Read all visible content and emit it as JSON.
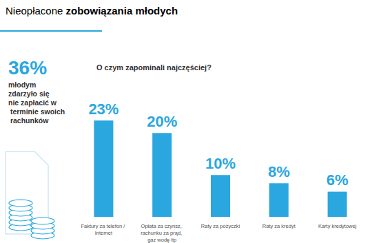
{
  "chart_data": {
    "type": "bar",
    "title": "Nieopłacone zobowiązania młodych",
    "subtitle": "O czym zapominali najczęściej?",
    "annotations": [
      "36%",
      "młodym zdarzyło się nie zapłacić w terminie swoich rachunków"
    ],
    "categories": [
      "Faktury za telefon / Internet",
      "Opłata za czynsz, rachunku za prąd, gaz wodę itp",
      "Raty za pożyczki",
      "Raty za kredyt",
      "Karty kredytowej"
    ],
    "values": [
      23,
      20,
      10,
      8,
      6
    ],
    "value_labels": [
      "23%",
      "20%",
      "10%",
      "8%",
      "6%"
    ],
    "color": "#2aa7df",
    "data_labels": true,
    "tick_labels": "x",
    "grid": false
  }
}
